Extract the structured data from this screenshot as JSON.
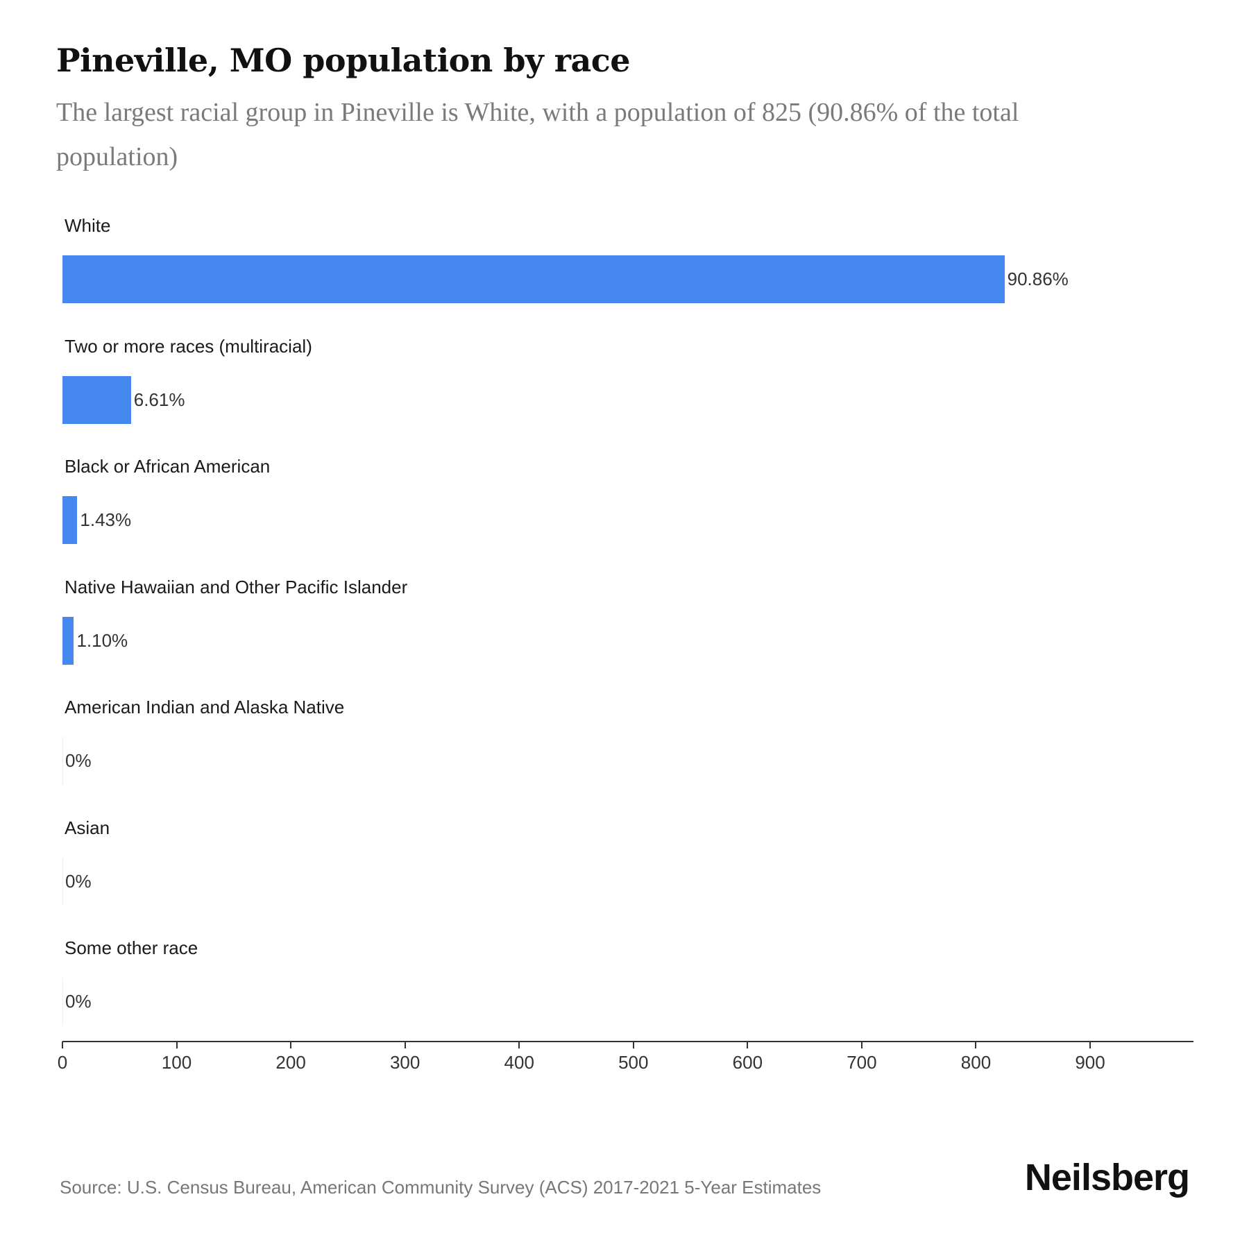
{
  "header": {
    "title": "Pineville, MO population by race",
    "subtitle": "The largest racial group in Pineville is White, with a population of 825 (90.86% of the total population)"
  },
  "footer": {
    "source": "Source: U.S. Census Bureau, American Community Survey (ACS) 2017-2021 5-Year Estimates",
    "logo": "Neilsberg"
  },
  "colors": {
    "bar": "#4589f0",
    "title": "#111111",
    "subtitle": "#7a7a7a"
  },
  "chart_data": {
    "type": "bar",
    "orientation": "horizontal",
    "title": "Pineville, MO population by race",
    "subtitle": "The largest racial group in Pineville is White, with a population of 825 (90.86% of the total population)",
    "xlabel": "",
    "ylabel": "",
    "categories": [
      "White",
      "Two or more races (multiracial)",
      "Black or African American",
      "Native Hawaiian and Other Pacific Islander",
      "American Indian and Alaska Native",
      "Asian",
      "Some other race"
    ],
    "values": [
      825,
      60,
      13,
      10,
      0,
      0,
      0
    ],
    "labels": [
      "90.86%",
      "6.61%",
      "1.43%",
      "1.10%",
      "0%",
      "0%",
      "0%"
    ],
    "xlim": [
      0,
      990
    ],
    "xticks": [
      0,
      100,
      200,
      300,
      400,
      500,
      600,
      700,
      800,
      900
    ],
    "xtick_labels": [
      "0",
      "100",
      "200",
      "300",
      "400",
      "500",
      "600",
      "700",
      "800",
      "900"
    ],
    "grid": false,
    "legend": null,
    "source": "Source: U.S. Census Bureau, American Community Survey (ACS) 2017-2021 5-Year Estimates"
  }
}
